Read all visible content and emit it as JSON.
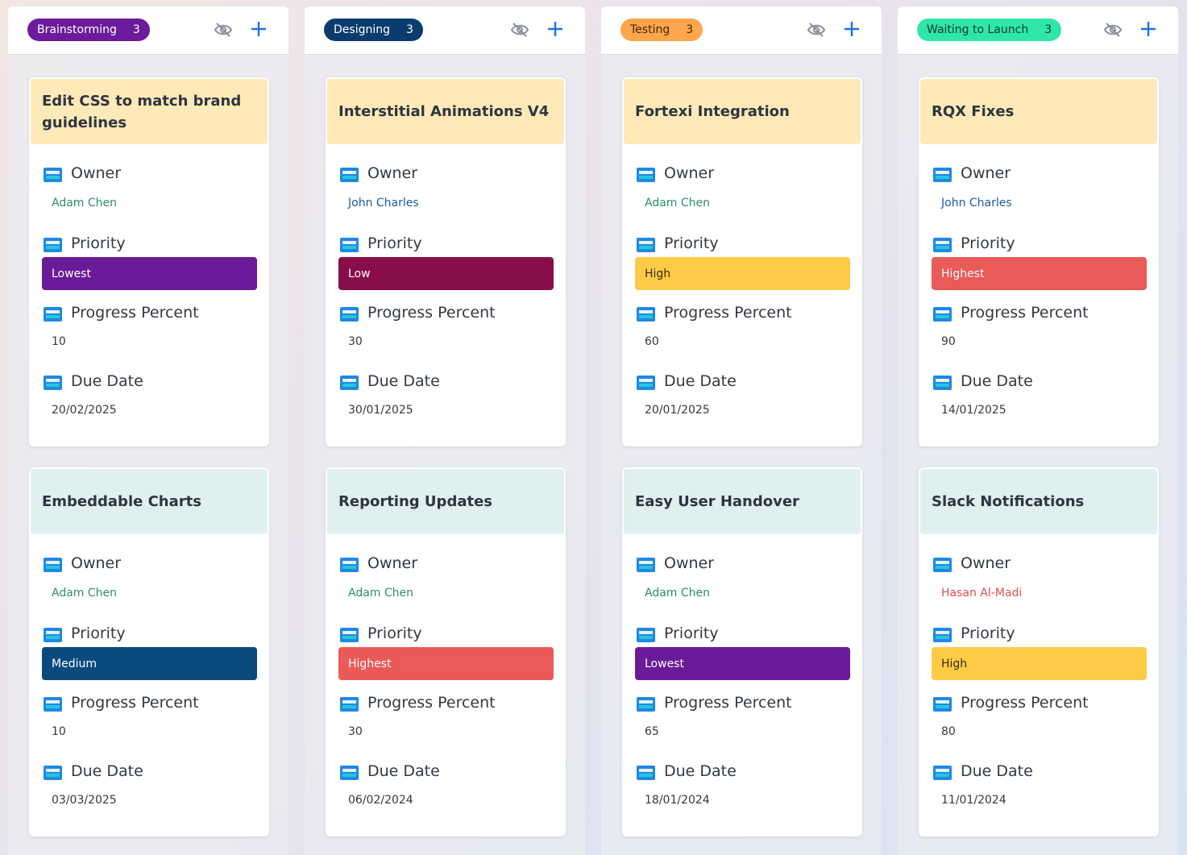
{
  "columns": [
    {
      "name": "Brainstorming",
      "count": "3",
      "pill_bg": "#6b1b9b",
      "pill_fg": "#ffffff",
      "cards": [
        {
          "title": "Edit CSS to match brand guidelines",
          "owner": "Adam Chen",
          "owner_color": "#2e8b6f",
          "priority": "Lowest",
          "priority_bg": "#6a1b9a",
          "priority_fg": "#ffffff",
          "progress": "10",
          "due": "20/02/2025",
          "title_bg": "#fdeab8"
        },
        {
          "title": "Embeddable Charts",
          "owner": "Adam Chen",
          "owner_color": "#2e8b6f",
          "priority": "Medium",
          "priority_bg": "#0b4a7e",
          "priority_fg": "#ffffff",
          "progress": "10",
          "due": "03/03/2025",
          "title_bg": "#dff0ef"
        }
      ]
    },
    {
      "name": "Designing",
      "count": "3",
      "pill_bg": "#0b3c6e",
      "pill_fg": "#ffffff",
      "cards": [
        {
          "title": "Interstitial Animations V4",
          "owner": "John Charles",
          "owner_color": "#1f5aa0",
          "priority": "Low",
          "priority_bg": "#880e4a",
          "priority_fg": "#ffffff",
          "progress": "30",
          "due": "30/01/2025",
          "title_bg": "#fdeab8"
        },
        {
          "title": "Reporting Updates",
          "owner": "Adam Chen",
          "owner_color": "#2e8b6f",
          "priority": "Highest",
          "priority_bg": "#ea5a58",
          "priority_fg": "#ffffff",
          "progress": "30",
          "due": "06/02/2024",
          "title_bg": "#dff0ef"
        }
      ]
    },
    {
      "name": "Testing",
      "count": "3",
      "pill_bg": "#ffa54a",
      "pill_fg": "#3a2a10",
      "cards": [
        {
          "title": "Fortexi Integration",
          "owner": "Adam Chen",
          "owner_color": "#2e8b6f",
          "priority": "High",
          "priority_bg": "#ffcb47",
          "priority_fg": "#3a2a10",
          "progress": "60",
          "due": "20/01/2025",
          "title_bg": "#fdeab8"
        },
        {
          "title": "Easy User Handover",
          "owner": "Adam Chen",
          "owner_color": "#2e8b6f",
          "priority": "Lowest",
          "priority_bg": "#6a1b9a",
          "priority_fg": "#ffffff",
          "progress": "65",
          "due": "18/01/2024",
          "title_bg": "#dff0ef"
        }
      ]
    },
    {
      "name": "Waiting to Launch",
      "count": "3",
      "pill_bg": "#2ee6a8",
      "pill_fg": "#0f3a2c",
      "cards": [
        {
          "title": "RQX Fixes",
          "owner": "John Charles",
          "owner_color": "#1f5aa0",
          "priority": "Highest",
          "priority_bg": "#ea5a58",
          "priority_fg": "#ffffff",
          "progress": "90",
          "due": "14/01/2025",
          "title_bg": "#fdeab8"
        },
        {
          "title": "Slack Notifications",
          "owner": "Hasan Al-Madi",
          "owner_color": "#e2504f",
          "priority": "High",
          "priority_bg": "#ffcb47",
          "priority_fg": "#3a2a10",
          "progress": "80",
          "due": "11/01/2024",
          "title_bg": "#dff0ef"
        }
      ]
    }
  ],
  "labels": {
    "owner": "Owner",
    "priority": "Priority",
    "progress": "Progress Percent",
    "due": "Due Date"
  },
  "icons": {
    "hide": "eye-slash-icon",
    "add": "plus-icon",
    "field": "field-card-icon"
  },
  "colors": {
    "accent": "#1a73e8",
    "icon_grey": "#8a8f99"
  }
}
